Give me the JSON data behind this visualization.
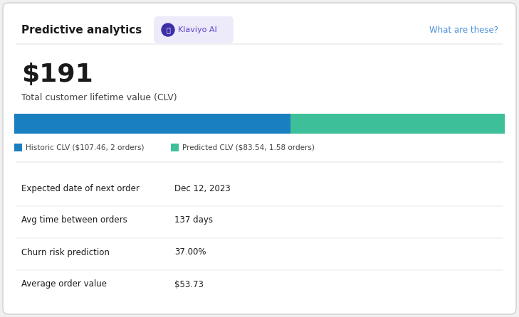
{
  "title": "Predictive analytics",
  "klaviyo_badge": "Klaviyo AI",
  "what_are_these": "What are these?",
  "total_clv_value": "$191",
  "total_clv_label": "Total customer lifetime value (CLV)",
  "historic_clv": 107.46,
  "predicted_clv": 83.54,
  "historic_label": "Historic CLV ($107.46, 2 orders)",
  "predicted_label": "Predicted CLV ($83.54, 1.58 orders)",
  "bar_color_historic": "#1a7fc1",
  "bar_color_predicted": "#3dbf99",
  "badge_bg": "#edeafa",
  "badge_text_color": "#5b3fc8",
  "badge_icon_color": "#3d2fa8",
  "badge_icon_bg": "#3d2fa8",
  "what_are_these_color": "#4a90d9",
  "bg_color": "#f0f0f0",
  "card_bg": "#ffffff",
  "divider_color": "#e5e5e5",
  "metrics": [
    {
      "label": "Expected date of next order",
      "value": "Dec 12, 2023"
    },
    {
      "label": "Avg time between orders",
      "value": "137 days"
    },
    {
      "label": "Churn risk prediction",
      "value": "37.00%"
    },
    {
      "label": "Average order value",
      "value": "$53.73"
    }
  ],
  "title_fontsize": 11,
  "clv_fontsize": 26,
  "clv_label_fontsize": 9,
  "legend_fontsize": 7.5,
  "metric_label_fontsize": 8.5,
  "metric_value_fontsize": 8.5,
  "what_are_these_fontsize": 8.5
}
